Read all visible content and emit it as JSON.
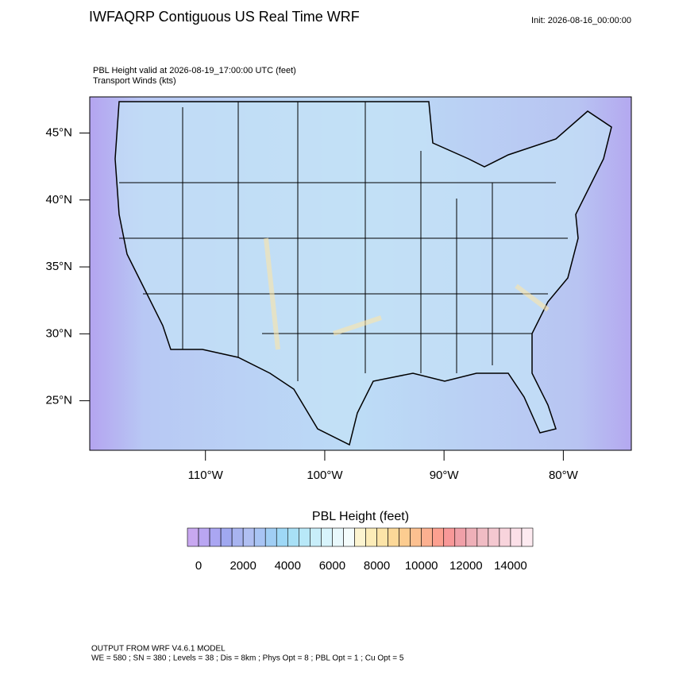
{
  "header": {
    "title": "IWFAQRP Contiguous US Real Time WRF",
    "init": "Init: 2026-08-16_00:00:00",
    "subtitle": [
      "PBL Height valid at 2026-08-19_17:00:00 UTC   (feet)",
      "Transport Winds   (kts)"
    ]
  },
  "map": {
    "xlim": [
      -119.7,
      -74.3
    ],
    "ylim": [
      21.3,
      47.7
    ],
    "yticks": [
      {
        "value": 45,
        "label": "45°N"
      },
      {
        "value": 40,
        "label": "40°N"
      },
      {
        "value": 35,
        "label": "35°N"
      },
      {
        "value": 30,
        "label": "30°N"
      },
      {
        "value": 25,
        "label": "25°N"
      }
    ],
    "xticks": [
      {
        "value": -110,
        "label": "110°W"
      },
      {
        "value": -100,
        "label": "100°W"
      },
      {
        "value": -90,
        "label": "90°W"
      },
      {
        "value": -80,
        "label": "80°W"
      }
    ]
  },
  "colorbar": {
    "title": "PBL Height  (feet)",
    "lim": [
      -500,
      15000
    ],
    "ticks": [
      0,
      2000,
      4000,
      6000,
      8000,
      10000,
      12000,
      14000
    ],
    "colors": [
      "#c8a8f0",
      "#b9a6f2",
      "#aaa6f2",
      "#a0a8f0",
      "#a8b4f0",
      "#b0bff2",
      "#a8c4f4",
      "#a0cef4",
      "#9ed8f6",
      "#a8e0f6",
      "#b8e8f8",
      "#c8eefa",
      "#d8f4fc",
      "#e8f8fc",
      "#f4fcfc",
      "#fcf4d0",
      "#fcecb8",
      "#fce4a8",
      "#fcd898",
      "#fccc90",
      "#fcc090",
      "#fcb090",
      "#fca090",
      "#f89898",
      "#f0a0a8",
      "#eeb0b8",
      "#f0bcc4",
      "#f4c8d0",
      "#f8d4dc",
      "#fce0e8",
      "#fdeaf0"
    ]
  },
  "footer": [
    "OUTPUT FROM WRF V4.6.1 MODEL",
    "WE = 580 ; SN = 380 ; Levels = 38 ; Dis = 8km ; Phys Opt = 8 ; PBL Opt = 1 ; Cu Opt = 5"
  ]
}
